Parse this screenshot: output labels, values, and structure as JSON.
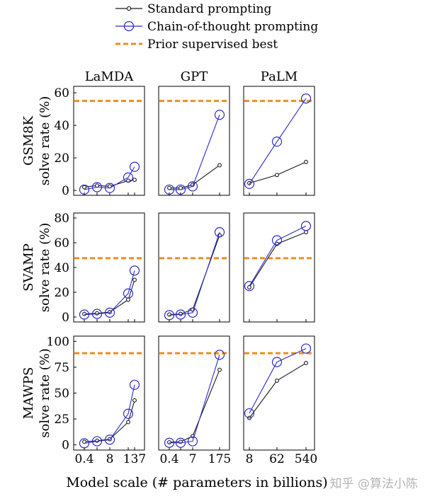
{
  "legend": {
    "items": [
      {
        "label": "Standard prompting",
        "style": "std"
      },
      {
        "label": "Chain-of-thought prompting",
        "style": "cot"
      },
      {
        "label": "Prior supervised best",
        "style": "best"
      }
    ]
  },
  "colors": {
    "standard": "#1a1a1a",
    "cot": "#2b2bc8",
    "prior_best": "#f28c1c",
    "frame": "#000000",
    "watermark": "#b4b4b4"
  },
  "xlabel": "Model scale (# parameters in billions)",
  "watermark": "知乎 @算法小陈",
  "chart_data": [
    {
      "type": "line",
      "column": "LaMDA",
      "row": "GSM8K",
      "ylabel": "GSM8K\nsolve rate (%)",
      "x": [
        "0.4",
        "2",
        "8",
        "68",
        "137"
      ],
      "ylim": [
        -3,
        64
      ],
      "yticks": [
        0,
        20,
        40,
        60
      ],
      "series": [
        {
          "name": "Standard prompting",
          "values": [
            2,
            3,
            2.5,
            6,
            6.5
          ]
        },
        {
          "name": "Chain-of-thought prompting",
          "values": [
            0.5,
            2,
            1.5,
            8,
            14.5
          ]
        }
      ],
      "prior_best": 55
    },
    {
      "type": "line",
      "column": "GPT",
      "row": "GSM8K",
      "x": [
        "0.4",
        "1.3",
        "7",
        "175"
      ],
      "ylim": [
        -3,
        64
      ],
      "series": [
        {
          "name": "Standard prompting",
          "values": [
            1.5,
            1.5,
            3.5,
            15.5
          ]
        },
        {
          "name": "Chain-of-thought prompting",
          "values": [
            0.5,
            0.5,
            2.5,
            46.5
          ]
        }
      ],
      "prior_best": 55
    },
    {
      "type": "line",
      "column": "PaLM",
      "row": "GSM8K",
      "x": [
        "8",
        "62",
        "540"
      ],
      "ylim": [
        -3,
        64
      ],
      "series": [
        {
          "name": "Standard prompting",
          "values": [
            4.5,
            9.5,
            17.5
          ]
        },
        {
          "name": "Chain-of-thought prompting",
          "values": [
            4,
            30,
            56.5
          ]
        }
      ],
      "prior_best": 55
    },
    {
      "type": "line",
      "column": "LaMDA",
      "row": "SVAMP",
      "ylabel": "SVAMP\nsolve rate (%)",
      "x": [
        "0.4",
        "2",
        "8",
        "68",
        "137"
      ],
      "ylim": [
        -4,
        84
      ],
      "yticks": [
        0,
        20,
        40,
        60,
        80
      ],
      "series": [
        {
          "name": "Standard prompting",
          "values": [
            2.5,
            3,
            4,
            14,
            30
          ]
        },
        {
          "name": "Chain-of-thought prompting",
          "values": [
            2,
            2.5,
            3.5,
            19,
            37.5
          ]
        }
      ],
      "prior_best": 47.5
    },
    {
      "type": "line",
      "column": "GPT",
      "row": "SVAMP",
      "x": [
        "0.4",
        "1.3",
        "7",
        "175"
      ],
      "ylim": [
        -4,
        84
      ],
      "series": [
        {
          "name": "Standard prompting",
          "values": [
            2,
            2.5,
            6,
            66
          ]
        },
        {
          "name": "Chain-of-thought prompting",
          "values": [
            1.5,
            2,
            3.5,
            68.5
          ]
        }
      ],
      "prior_best": 47.5
    },
    {
      "type": "line",
      "column": "PaLM",
      "row": "SVAMP",
      "x": [
        "8",
        "62",
        "540"
      ],
      "ylim": [
        -4,
        84
      ],
      "series": [
        {
          "name": "Standard prompting",
          "values": [
            24,
            59,
            68.5
          ]
        },
        {
          "name": "Chain-of-thought prompting",
          "values": [
            25,
            62,
            73.5
          ]
        }
      ],
      "prior_best": 47.5
    },
    {
      "type": "line",
      "column": "LaMDA",
      "row": "MAWPS",
      "ylabel": "MAWPS\nsolve rate (%)",
      "x": [
        "0.4",
        "2",
        "8",
        "68",
        "137"
      ],
      "ylim": [
        -5,
        105
      ],
      "yticks": [
        0,
        25,
        50,
        75,
        100
      ],
      "series": [
        {
          "name": "Standard prompting",
          "values": [
            3,
            4,
            5.5,
            22,
            43
          ]
        },
        {
          "name": "Chain-of-thought prompting",
          "values": [
            1.5,
            3.5,
            5,
            30,
            58
          ]
        }
      ],
      "prior_best": 88.5
    },
    {
      "type": "line",
      "column": "GPT",
      "row": "MAWPS",
      "x": [
        "0.4",
        "1.3",
        "7",
        "175"
      ],
      "ylim": [
        -5,
        105
      ],
      "series": [
        {
          "name": "Standard prompting",
          "values": [
            2.5,
            3,
            8.5,
            72.5
          ]
        },
        {
          "name": "Chain-of-thought prompting",
          "values": [
            2,
            2,
            3.5,
            87
          ]
        }
      ],
      "prior_best": 88.5
    },
    {
      "type": "line",
      "column": "PaLM",
      "row": "MAWPS",
      "x": [
        "8",
        "62",
        "540"
      ],
      "ylim": [
        -5,
        105
      ],
      "series": [
        {
          "name": "Standard prompting",
          "values": [
            26,
            62,
            79
          ]
        },
        {
          "name": "Chain-of-thought prompting",
          "values": [
            30.5,
            80,
            93
          ]
        }
      ],
      "prior_best": 88.5
    }
  ],
  "x_tick_labels": [
    {
      "column": "LaMDA",
      "labels": [
        "0.4",
        "8",
        "137"
      ]
    },
    {
      "column": "GPT",
      "labels": [
        "0.4",
        "7",
        "175"
      ]
    },
    {
      "column": "PaLM",
      "labels": [
        "8",
        "62",
        "540"
      ]
    }
  ]
}
